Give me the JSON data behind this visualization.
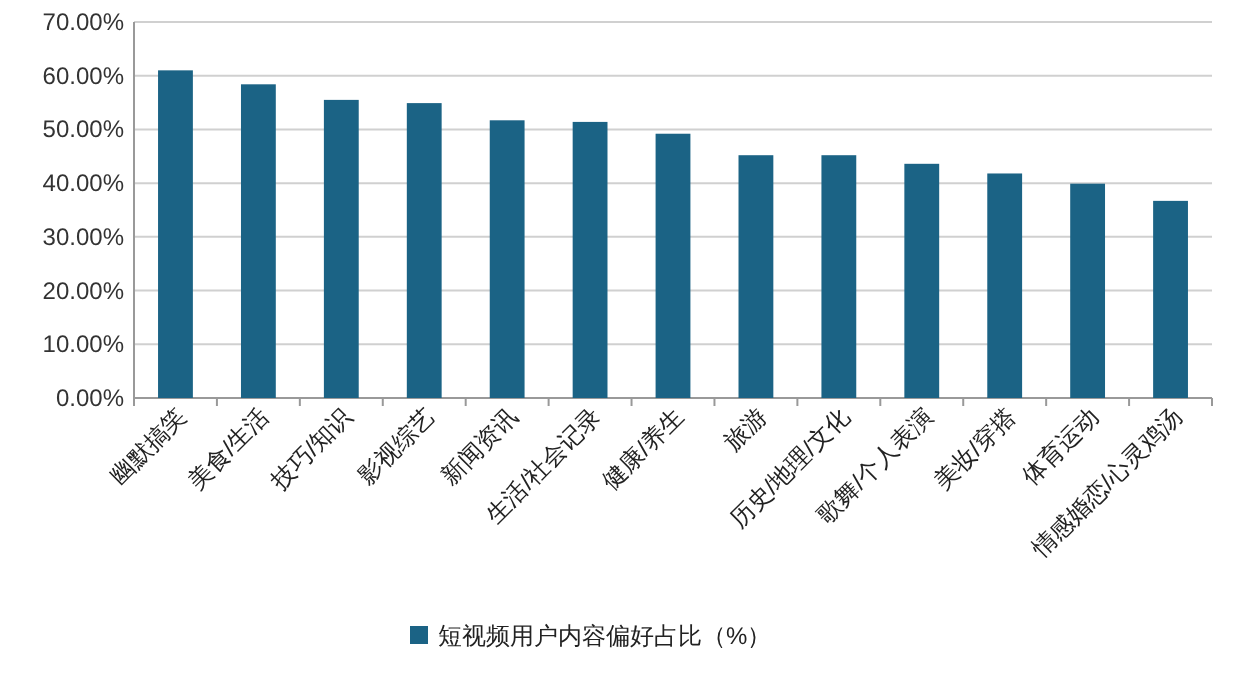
{
  "chart_data": {
    "type": "bar",
    "categories": [
      "幽默搞笑",
      "美食/生活",
      "技巧/知识",
      "影视综艺",
      "新闻资讯",
      "生活/社会记录",
      "健康/养生",
      "旅游",
      "历史/地理/文化",
      "歌舞/个人表演",
      "美妆/穿搭",
      "体育运动",
      "情感婚恋/心灵鸡汤"
    ],
    "series": [
      {
        "name": "短视频用户内容偏好占比（%）",
        "color": "#1b6385",
        "values": [
          61.0,
          58.4,
          55.5,
          54.9,
          51.7,
          51.4,
          49.2,
          45.2,
          45.2,
          43.6,
          41.8,
          39.9,
          36.7
        ]
      }
    ],
    "ylim": [
      0,
      70
    ],
    "yticks": [
      {
        "value": 0,
        "label": "0.00%"
      },
      {
        "value": 10,
        "label": "10.00%"
      },
      {
        "value": 20,
        "label": "20.00%"
      },
      {
        "value": 30,
        "label": "30.00%"
      },
      {
        "value": 40,
        "label": "40.00%"
      },
      {
        "value": 50,
        "label": "50.00%"
      },
      {
        "value": 60,
        "label": "60.00%"
      },
      {
        "value": 70,
        "label": "70.00%"
      }
    ],
    "grid": "y",
    "legend": "bottom"
  }
}
